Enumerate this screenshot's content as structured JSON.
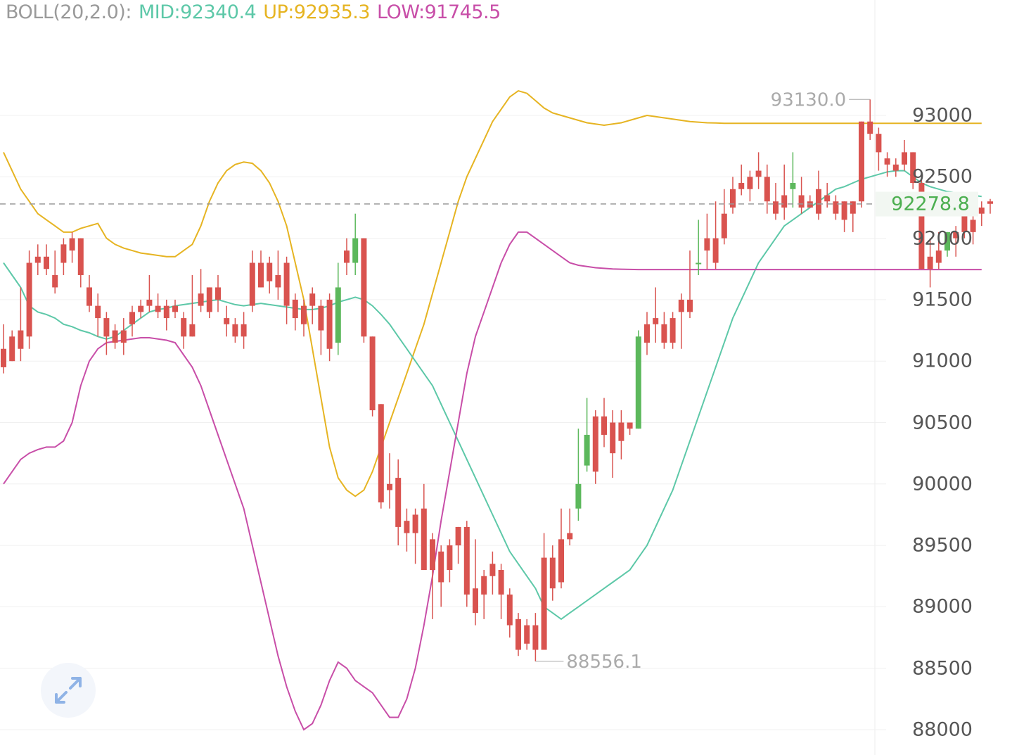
{
  "legend": {
    "name": "BOLL(20,2.0):",
    "mid": "MID:92340.4",
    "up": "UP:92935.3",
    "low": "LOW:91745.5"
  },
  "colors": {
    "up_candle": "#5cb85c",
    "down_candle": "#d9534f",
    "mid": "#5dc8a8",
    "upper": "#e6b422",
    "lower": "#c84ea8",
    "legend_name": "#9a9a9a",
    "current_price": "#4caf50"
  },
  "annotations": {
    "high": "93130.0",
    "low": "88556.1"
  },
  "current_price_label": "92278.8",
  "expand_icon": "expand-arrows-icon",
  "chart_data": {
    "type": "candlestick",
    "y_ticks": [
      "93000",
      "92500",
      "92000",
      "91500",
      "91000",
      "90500",
      "90000",
      "89500",
      "89000",
      "88500",
      "88000"
    ],
    "y_tick_values": [
      93000,
      92500,
      92000,
      91500,
      91000,
      90500,
      90000,
      89500,
      89000,
      88500,
      88000
    ],
    "ylim": [
      87800,
      93700
    ],
    "grid": true,
    "current_price": 92278.8,
    "high_marker": 93130.0,
    "low_marker": 88556.1,
    "candles": [
      [
        91100,
        91300,
        90950,
        90900
      ],
      [
        91200,
        91250,
        91000,
        91100
      ],
      [
        91250,
        91600,
        91100,
        91000
      ],
      [
        91800,
        91900,
        91200,
        91100
      ],
      [
        91850,
        91950,
        91800,
        91700
      ],
      [
        91850,
        91950,
        91750,
        91700
      ],
      [
        91700,
        91900,
        91600,
        91550
      ],
      [
        91950,
        92000,
        91800,
        91700
      ],
      [
        92000,
        92050,
        91900,
        91800
      ],
      [
        92000,
        92000,
        91700,
        91600
      ],
      [
        91600,
        91700,
        91450,
        91400
      ],
      [
        91450,
        91550,
        91350,
        91200
      ],
      [
        91350,
        91400,
        91200,
        91050
      ],
      [
        91250,
        91300,
        91150,
        91100
      ],
      [
        91250,
        91350,
        91150,
        91050
      ],
      [
        91400,
        91450,
        91300,
        91200
      ],
      [
        91450,
        91500,
        91400,
        91350
      ],
      [
        91500,
        91700,
        91450,
        91400
      ],
      [
        91450,
        91550,
        91400,
        91350
      ],
      [
        91450,
        91500,
        91350,
        91250
      ],
      [
        91450,
        91500,
        91400,
        91350
      ],
      [
        91350,
        91400,
        91200,
        91100
      ],
      [
        91300,
        91700,
        91200,
        91250
      ],
      [
        91550,
        91750,
        91450,
        91400
      ],
      [
        91600,
        91600,
        91400,
        91350
      ],
      [
        91600,
        91700,
        91500,
        91400
      ],
      [
        91350,
        91450,
        91300,
        91200
      ],
      [
        91300,
        91350,
        91200,
        91150
      ],
      [
        91300,
        91400,
        91200,
        91100
      ],
      [
        91800,
        91900,
        91450,
        91400
      ],
      [
        91800,
        91900,
        91600,
        91600
      ],
      [
        91800,
        91850,
        91650,
        91550
      ],
      [
        91700,
        91900,
        91600,
        91500
      ],
      [
        91800,
        91850,
        91450,
        91300
      ],
      [
        91500,
        91550,
        91350,
        91250
      ],
      [
        91450,
        91500,
        91300,
        91200
      ],
      [
        91550,
        91600,
        91450,
        91300
      ],
      [
        91450,
        91500,
        91250,
        91050
      ],
      [
        91500,
        91550,
        91100,
        91000
      ],
      [
        91150,
        91800,
        91600,
        91050
      ],
      [
        91900,
        92000,
        91800,
        91700
      ],
      [
        91800,
        92200,
        92000,
        91700
      ],
      [
        92000,
        92000,
        91200,
        91150
      ],
      [
        91200,
        91150,
        90600,
        90550
      ],
      [
        90650,
        90650,
        89850,
        89800
      ],
      [
        90000,
        90250,
        89950,
        89800
      ],
      [
        90050,
        90200,
        89650,
        89500
      ],
      [
        89700,
        89800,
        89600,
        89450
      ],
      [
        89750,
        89800,
        89600,
        89350
      ],
      [
        89800,
        90000,
        89300,
        89300
      ],
      [
        89550,
        89600,
        89300,
        88900
      ],
      [
        89450,
        89500,
        89200,
        89000
      ],
      [
        89500,
        89550,
        89300,
        89200
      ],
      [
        89650,
        89650,
        89500,
        89350
      ],
      [
        89650,
        89700,
        89100,
        89000
      ],
      [
        89150,
        89550,
        88950,
        88850
      ],
      [
        89250,
        89300,
        89100,
        88900
      ],
      [
        89350,
        89450,
        89250,
        89100
      ],
      [
        89300,
        89350,
        89100,
        88900
      ],
      [
        89100,
        89150,
        88850,
        88750
      ],
      [
        88900,
        88950,
        88650,
        88600
      ],
      [
        88850,
        88900,
        88700,
        88650
      ],
      [
        88850,
        88950,
        88650,
        88556
      ],
      [
        89400,
        89600,
        88650,
        88650
      ],
      [
        89400,
        89500,
        89150,
        89050
      ],
      [
        89550,
        89800,
        89200,
        89150
      ],
      [
        89600,
        89800,
        89550,
        89500
      ],
      [
        89800,
        90450,
        90000,
        89700
      ],
      [
        90150,
        90700,
        90400,
        90100
      ],
      [
        90550,
        90600,
        90100,
        90000
      ],
      [
        90550,
        90700,
        90400,
        90300
      ],
      [
        90500,
        90600,
        90250,
        90050
      ],
      [
        90500,
        90600,
        90350,
        90200
      ],
      [
        90500,
        90500,
        90450,
        90400
      ],
      [
        90450,
        91250,
        91200,
        90450
      ],
      [
        91300,
        91400,
        91150,
        91050
      ],
      [
        91350,
        91600,
        91300,
        91150
      ],
      [
        91300,
        91400,
        91150,
        91100
      ],
      [
        91350,
        91400,
        91150,
        91100
      ],
      [
        91500,
        91550,
        91400,
        91100
      ],
      [
        91500,
        91900,
        91400,
        91350
      ],
      [
        91800,
        92150,
        91800,
        91700
      ],
      [
        92000,
        92200,
        91900,
        91750
      ],
      [
        92000,
        92300,
        91800,
        91750
      ],
      [
        92200,
        92400,
        92000,
        91950
      ],
      [
        92400,
        92500,
        92250,
        92200
      ],
      [
        92450,
        92600,
        92400,
        92350
      ],
      [
        92500,
        92550,
        92400,
        92300
      ],
      [
        92550,
        92700,
        92500,
        92400
      ],
      [
        92500,
        92600,
        92300,
        92200
      ],
      [
        92300,
        92450,
        92200,
        92150
      ],
      [
        92350,
        92600,
        92250,
        92150
      ],
      [
        92400,
        92700,
        92450,
        92250
      ],
      [
        92350,
        92500,
        92250,
        92200
      ],
      [
        92300,
        92350,
        92250,
        92250
      ],
      [
        92400,
        92550,
        92200,
        92150
      ],
      [
        92350,
        92450,
        92300,
        92250
      ],
      [
        92300,
        92350,
        92200,
        92150
      ],
      [
        92300,
        92300,
        92150,
        92050
      ],
      [
        92300,
        92100,
        92200,
        92050
      ],
      [
        92950,
        92950,
        92300,
        92250
      ],
      [
        92950,
        93130,
        92850,
        92800
      ],
      [
        92850,
        92900,
        92700,
        92550
      ],
      [
        92650,
        92700,
        92600,
        92500
      ],
      [
        92600,
        92650,
        92550,
        92500
      ],
      [
        92700,
        92800,
        92600,
        92550
      ],
      [
        92700,
        92700,
        92450,
        92400
      ],
      [
        92450,
        92500,
        91750,
        91750
      ],
      [
        91850,
        92000,
        91750,
        91600
      ],
      [
        91900,
        92050,
        91800,
        91750
      ],
      [
        91900,
        92000,
        92050,
        91850
      ],
      [
        92050,
        92100,
        92000,
        91850
      ],
      [
        92200,
        92350,
        92050,
        92000
      ],
      [
        92150,
        92300,
        92050,
        91950
      ],
      [
        92250,
        92300,
        92200,
        92100
      ],
      [
        92300,
        92320,
        92280,
        92200
      ]
    ],
    "boll_mid": [
      91800,
      91700,
      91600,
      91450,
      91400,
      91380,
      91350,
      91300,
      91280,
      91250,
      91230,
      91200,
      91180,
      91200,
      91250,
      91300,
      91350,
      91400,
      91420,
      91430,
      91450,
      91460,
      91470,
      91480,
      91490,
      91500,
      91480,
      91460,
      91450,
      91460,
      91470,
      91460,
      91450,
      91440,
      91430,
      91420,
      91420,
      91430,
      91450,
      91480,
      91500,
      91520,
      91500,
      91450,
      91380,
      91300,
      91200,
      91100,
      91000,
      90900,
      90800,
      90650,
      90500,
      90350,
      90200,
      90050,
      89900,
      89750,
      89600,
      89450,
      89350,
      89250,
      89150,
      89000,
      88950,
      88900,
      88950,
      89000,
      89050,
      89100,
      89150,
      89200,
      89250,
      89300,
      89400,
      89500,
      89650,
      89800,
      89950,
      90150,
      90350,
      90550,
      90750,
      90950,
      91150,
      91350,
      91500,
      91650,
      91800,
      91900,
      92000,
      92100,
      92150,
      92200,
      92250,
      92300,
      92350,
      92400,
      92420,
      92450,
      92480,
      92500,
      92520,
      92540,
      92550,
      92550,
      92500,
      92450,
      92420,
      92400,
      92380,
      92370,
      92360,
      92350,
      92340
    ],
    "boll_upper": [
      92700,
      92550,
      92400,
      92300,
      92200,
      92150,
      92100,
      92050,
      92050,
      92080,
      92100,
      92120,
      92000,
      91950,
      91920,
      91900,
      91880,
      91870,
      91860,
      91850,
      91850,
      91900,
      91950,
      92100,
      92300,
      92450,
      92550,
      92600,
      92620,
      92610,
      92550,
      92450,
      92300,
      92100,
      91800,
      91500,
      91100,
      90700,
      90300,
      90050,
      89950,
      89900,
      89950,
      90100,
      90300,
      90500,
      90700,
      90900,
      91100,
      91300,
      91550,
      91800,
      92050,
      92300,
      92500,
      92650,
      92800,
      92950,
      93050,
      93150,
      93200,
      93180,
      93120,
      93060,
      93020,
      93000,
      92980,
      92960,
      92940,
      92930,
      92920,
      92930,
      92940,
      92960,
      92980,
      93000,
      92990,
      92980,
      92970,
      92960,
      92950,
      92945,
      92940,
      92938,
      92936,
      92935,
      92935,
      92935,
      92935,
      92935,
      92935,
      92935,
      92935,
      92935,
      92935,
      92935,
      92935,
      92935,
      92935,
      92935,
      92935,
      92935,
      92935,
      92935,
      92935,
      92935,
      92935,
      92935,
      92935,
      92935,
      92935,
      92935,
      92935,
      92935,
      92935
    ],
    "boll_lower": [
      90000,
      90100,
      90200,
      90250,
      90280,
      90300,
      90300,
      90350,
      90500,
      90800,
      91000,
      91100,
      91150,
      91160,
      91170,
      91180,
      91190,
      91190,
      91180,
      91170,
      91150,
      91050,
      90950,
      90800,
      90600,
      90400,
      90200,
      90000,
      89800,
      89500,
      89200,
      88900,
      88600,
      88350,
      88150,
      88000,
      88050,
      88200,
      88400,
      88550,
      88500,
      88400,
      88350,
      88300,
      88200,
      88100,
      88100,
      88250,
      88500,
      88850,
      89250,
      89700,
      90100,
      90500,
      90900,
      91200,
      91400,
      91600,
      91800,
      91950,
      92050,
      92050,
      92000,
      91950,
      91900,
      91850,
      91800,
      91780,
      91770,
      91760,
      91755,
      91750,
      91748,
      91746,
      91745,
      91745,
      91745,
      91745,
      91745,
      91745,
      91745,
      91745,
      91745,
      91745,
      91745,
      91745,
      91745,
      91745,
      91745,
      91745,
      91745,
      91745,
      91745,
      91745,
      91745,
      91745,
      91745,
      91745,
      91745,
      91745,
      91745,
      91745,
      91745,
      91745,
      91745,
      91745,
      91745,
      91745,
      91745,
      91745,
      91745,
      91745,
      91745,
      91745,
      91745
    ]
  }
}
